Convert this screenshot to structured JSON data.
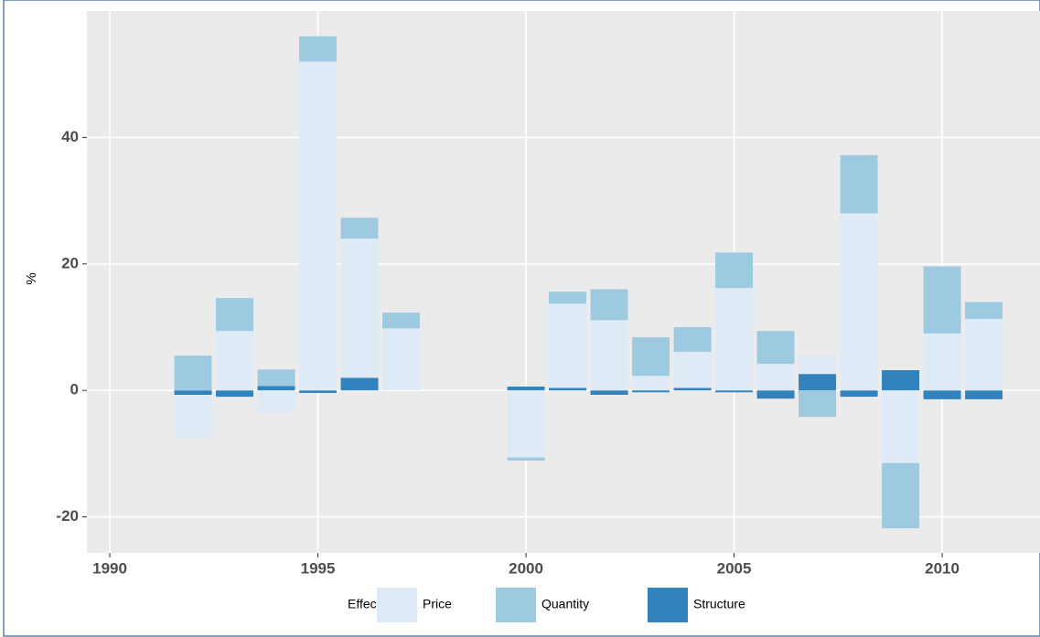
{
  "chart_data": {
    "type": "bar",
    "stacked": true,
    "y_label": "%",
    "legend_title": "Effects",
    "legend_position": "bottom",
    "grid": true,
    "x": [
      1992,
      1993,
      1994,
      1995,
      1996,
      1997,
      2000,
      2001,
      2002,
      2003,
      2004,
      2005,
      2006,
      2007,
      2008,
      2009,
      2010,
      2011
    ],
    "series": [
      {
        "name": "Price",
        "color": "#deebf7",
        "values": [
          -6.8,
          9.4,
          -3.5,
          52,
          22,
          9.8,
          -10.6,
          13.3,
          11.1,
          2.3,
          5.7,
          16.2,
          4.2,
          2.9,
          28,
          -11.5,
          9.0,
          11.3
        ]
      },
      {
        "name": "Quantity",
        "color": "#9ecae1",
        "values": [
          5.5,
          5.2,
          2.6,
          4.0,
          3.3,
          2.5,
          -0.5,
          1.9,
          4.9,
          6.1,
          3.9,
          5.6,
          5.2,
          -4.2,
          9.2,
          -10.3,
          10.6,
          2.7
        ]
      },
      {
        "name": "Structure",
        "color": "#3182bd",
        "values": [
          -0.7,
          -1.0,
          0.7,
          -0.4,
          2.0,
          0,
          0.6,
          0.4,
          -0.7,
          -0.3,
          0.4,
          -0.3,
          -1.3,
          2.6,
          -1.0,
          3.2,
          -1.4,
          -1.4
        ]
      }
    ],
    "xlim": [
      1989.45,
      2012.35
    ],
    "xticks": [
      1990,
      1995,
      2000,
      2005,
      2010
    ],
    "ylim": [
      -25.7,
      60
    ],
    "yticks": [
      -20,
      0,
      20,
      40
    ]
  }
}
